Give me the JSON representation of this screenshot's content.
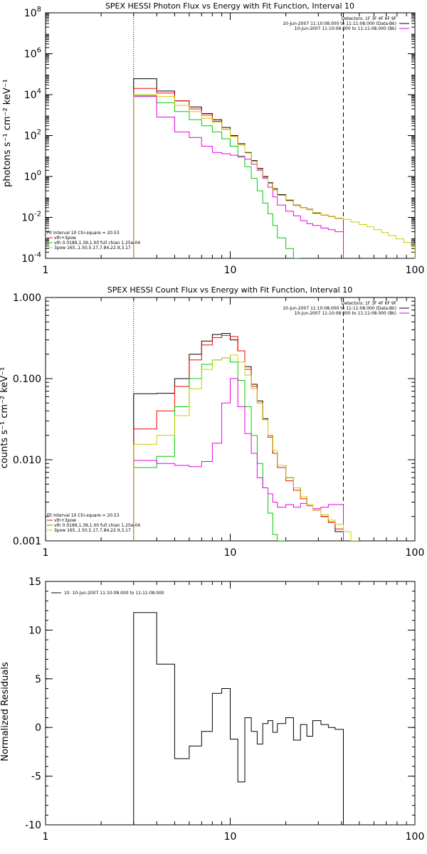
{
  "chart_data": [
    {
      "type": "line",
      "title": "SPEX HESSI Photon Flux vs Energy with Fit Function, Interval 10",
      "xlabel": "",
      "ylabel": "photons s⁻¹ cm⁻² keV⁻¹",
      "xscale": "log",
      "yscale": "log",
      "xlim": [
        1,
        100
      ],
      "ylim": [
        0.0001,
        100000000
      ],
      "x_ticks": [
        {
          "v": 1,
          "label": "1"
        },
        {
          "v": 10,
          "label": "10"
        },
        {
          "v": 100,
          "label": "100"
        }
      ],
      "y_ticks": [
        {
          "v": 0.0001,
          "base": "10",
          "exp": "-4"
        },
        {
          "v": 0.01,
          "base": "10",
          "exp": "-2"
        },
        {
          "v": 1,
          "base": "10",
          "exp": "0"
        },
        {
          "v": 100,
          "base": "10",
          "exp": "2"
        },
        {
          "v": 10000,
          "base": "10",
          "exp": "4"
        },
        {
          "v": 1000000,
          "base": "10",
          "exp": "6"
        },
        {
          "v": 100000000,
          "base": "10",
          "exp": "8"
        }
      ],
      "vlines": [
        {
          "x": 3,
          "style": "dotted"
        },
        {
          "x": 41,
          "style": "dashed"
        }
      ],
      "info_lines": [
        "Detectors: 1F 3F 4F 6F 9F",
        "10-Jun-2007 11:10:08.000 to 11:11:08.000 (Data-Bk)",
        "10-Jun-2007 11:10:08.000 to 11:11:08.000 (Bk)"
      ],
      "info_line_colors": [
        "",
        "#000000",
        "#e800e8"
      ],
      "legend": [
        "Fit Interval 10   Chi-square = 20.53",
        "vth+3pow",
        "vth 0.0189,1.39,1.00  full chian 1.25e-04",
        "3pow 165.,1.50,5.17,7.84,22.9,3.17"
      ],
      "legend_colors": [
        "",
        "#ff0000",
        "#00cc00",
        "#cccc00"
      ],
      "edges": [
        3,
        4,
        5,
        6,
        7,
        8,
        9,
        10,
        11,
        12,
        13,
        14,
        15,
        16,
        17,
        18,
        20,
        22,
        24,
        26,
        28,
        31,
        34,
        37,
        41
      ],
      "series": [
        {
          "color": "#000000",
          "values": [
            60000,
            15000,
            5000,
            2500,
            1200,
            600,
            250,
            100,
            40,
            15,
            6,
            2.5,
            1,
            0.5,
            0.25,
            0.13,
            0.07,
            0.04,
            0.03,
            0.025,
            0.016,
            0.013,
            0.011,
            0.009
          ]
        },
        {
          "color": "#ff0000",
          "values": [
            20000,
            12000,
            5000,
            2000,
            1000,
            500,
            200,
            90,
            35,
            14,
            5.5,
            2.2,
            0.9,
            0.45,
            0.22,
            0.12,
            0.065,
            0.038,
            0.03,
            0.024,
            0.017,
            0.013,
            0.011,
            0.009
          ]
        },
        {
          "color": "#00cc00",
          "values": [
            9000,
            4000,
            1500,
            600,
            300,
            150,
            70,
            30,
            10,
            3,
            0.8,
            0.2,
            0.05,
            0.015,
            0.004,
            0.001,
            0.0003,
            0.0001
          ]
        },
        {
          "color": "#e800e8",
          "values": [
            8000,
            800,
            150,
            80,
            30,
            15,
            13,
            11,
            9,
            7,
            4,
            2,
            0.8,
            0.3,
            0.1,
            0.04,
            0.02,
            0.012,
            0.007,
            0.005,
            0.004,
            0.003,
            0.0025,
            0.002
          ]
        },
        {
          "color": "#cccc00",
          "edges": [
            3,
            4,
            5,
            6,
            7,
            8,
            9,
            10,
            11,
            12,
            13,
            14,
            15,
            16,
            17,
            18,
            20,
            22,
            24,
            26,
            28,
            31,
            34,
            37,
            41,
            45,
            50,
            55,
            60,
            66,
            72,
            79,
            87,
            95,
            100
          ],
          "values": [
            10000,
            8000,
            3000,
            1500,
            700,
            450,
            200,
            90,
            35,
            14,
            5.5,
            2.2,
            0.9,
            0.45,
            0.22,
            0.12,
            0.065,
            0.038,
            0.03,
            0.024,
            0.017,
            0.013,
            0.011,
            0.009,
            0.008,
            0.006,
            0.0045,
            0.0035,
            0.0025,
            0.0018,
            0.0013,
            0.0009,
            0.0006,
            0.00045
          ]
        }
      ]
    },
    {
      "type": "line",
      "title": "SPEX HESSI Count Flux vs Energy with Fit Function, Interval 10",
      "xlabel": "",
      "ylabel": "counts s⁻¹ cm⁻² keV⁻¹",
      "xscale": "log",
      "yscale": "log",
      "xlim": [
        1,
        100
      ],
      "ylim": [
        0.001,
        1.0
      ],
      "x_ticks": [
        {
          "v": 1,
          "label": "1"
        },
        {
          "v": 10,
          "label": "10"
        },
        {
          "v": 100,
          "label": "100"
        }
      ],
      "y_ticks": [
        {
          "v": 0.001,
          "label": "0.001"
        },
        {
          "v": 0.01,
          "label": "0.010"
        },
        {
          "v": 0.1,
          "label": "0.100"
        },
        {
          "v": 1.0,
          "label": "1.000"
        }
      ],
      "vlines": [
        {
          "x": 3,
          "style": "dotted"
        },
        {
          "x": 41,
          "style": "dashed"
        }
      ],
      "info_lines": [
        "Detectors: 1F 3F 4F 6F 9F",
        "10-Jun-2007 11:10:08.000 to 11:11:08.000 (Data-Bk)",
        "10-Jun-2007 11:10:08.000 to 11:11:08.000 (Bk)"
      ],
      "info_line_colors": [
        "",
        "#000000",
        "#e800e8"
      ],
      "legend": [
        "Fit Interval 10   Chi-square = 20.53",
        "vth+3pow",
        "vth 0.0189,1.39,1.00  full chian 1.25e-04",
        "3pow 165.,1.50,5.17,7.84,22.9,3.17"
      ],
      "legend_colors": [
        "",
        "#ff0000",
        "#00cc00",
        "#cccc00"
      ],
      "edges": [
        3,
        4,
        5,
        6,
        7,
        8,
        9,
        10,
        11,
        12,
        13,
        14,
        15,
        16,
        17,
        18,
        20,
        22,
        24,
        26,
        28,
        31,
        34,
        37,
        41
      ],
      "series": [
        {
          "color": "#000000",
          "values": [
            0.065,
            0.066,
            0.1,
            0.2,
            0.29,
            0.35,
            0.36,
            0.3,
            0.22,
            0.14,
            0.085,
            0.053,
            0.032,
            0.02,
            0.012,
            0.0085,
            0.006,
            0.0045,
            0.0035,
            0.0028,
            0.0024,
            0.002,
            0.0017,
            0.0013
          ]
        },
        {
          "color": "#ff0000",
          "values": [
            0.024,
            0.04,
            0.08,
            0.17,
            0.26,
            0.32,
            0.34,
            0.33,
            0.22,
            0.13,
            0.08,
            0.05,
            0.031,
            0.019,
            0.012,
            0.008,
            0.0055,
            0.0042,
            0.0033,
            0.0028,
            0.0024,
            0.002,
            0.0017,
            0.0014
          ]
        },
        {
          "color": "#00cc00",
          "values": [
            0.008,
            0.011,
            0.045,
            0.1,
            0.15,
            0.17,
            0.18,
            0.16,
            0.095,
            0.045,
            0.02,
            0.009,
            0.0045,
            0.0022,
            0.0012,
            0.0006
          ]
        },
        {
          "color": "#e800e8",
          "values": [
            0.0098,
            0.009,
            0.0085,
            0.0082,
            0.0095,
            0.016,
            0.05,
            0.1,
            0.045,
            0.021,
            0.012,
            0.006,
            0.0045,
            0.0038,
            0.003,
            0.0026,
            0.0028,
            0.0026,
            0.0029,
            0.0027,
            0.0025,
            0.0026,
            0.0028,
            0.0028
          ]
        },
        {
          "color": "#cccc00",
          "edges": [
            3,
            4,
            5,
            6,
            7,
            8,
            9,
            10,
            11,
            12,
            13,
            14,
            15,
            16,
            17,
            18,
            20,
            22,
            24,
            26,
            28,
            31,
            34,
            37,
            41,
            45,
            50
          ],
          "values": [
            0.0155,
            0.02,
            0.035,
            0.075,
            0.13,
            0.17,
            0.18,
            0.195,
            0.16,
            0.11,
            0.075,
            0.05,
            0.031,
            0.02,
            0.013,
            0.0085,
            0.006,
            0.0045,
            0.0035,
            0.0028,
            0.0024,
            0.0021,
            0.0018,
            0.0016,
            0.0013,
            0.0009
          ]
        }
      ]
    },
    {
      "type": "line",
      "title": "",
      "xlabel": "",
      "ylabel": "Normalized Residuals",
      "xscale": "log",
      "yscale": "linear",
      "xlim": [
        1,
        100
      ],
      "ylim": [
        -10,
        15
      ],
      "x_ticks": [
        {
          "v": 1,
          "label": "1"
        },
        {
          "v": 10,
          "label": "10"
        },
        {
          "v": 100,
          "label": "100"
        }
      ],
      "y_ticks": [
        {
          "v": -10,
          "label": "-10"
        },
        {
          "v": -5,
          "label": "-5"
        },
        {
          "v": 0,
          "label": "0"
        },
        {
          "v": 5,
          "label": "5"
        },
        {
          "v": 10,
          "label": "10"
        },
        {
          "v": 15,
          "label": "15"
        }
      ],
      "vlines": [],
      "info_lines": [],
      "legend": [
        "10. 10-Jun-2007 11:10:08.000 to 11:11:08.000"
      ],
      "legend_colors": [
        "#000000"
      ],
      "edges": [
        3,
        4,
        5,
        6,
        7,
        8,
        9,
        10,
        11,
        12,
        13,
        14,
        15,
        16,
        17,
        18,
        20,
        22,
        24,
        26,
        28,
        31,
        34,
        37,
        41
      ],
      "series": [
        {
          "color": "#000000",
          "values": [
            11.8,
            6.5,
            -3.2,
            -1.9,
            -0.4,
            3.5,
            4.0,
            -1.2,
            -5.6,
            1.0,
            -0.4,
            -1.7,
            0.4,
            0.7,
            -0.5,
            0.4,
            1.0,
            -1.3,
            0.3,
            -0.9,
            0.7,
            0.3,
            0.0,
            -0.2
          ]
        }
      ]
    }
  ]
}
